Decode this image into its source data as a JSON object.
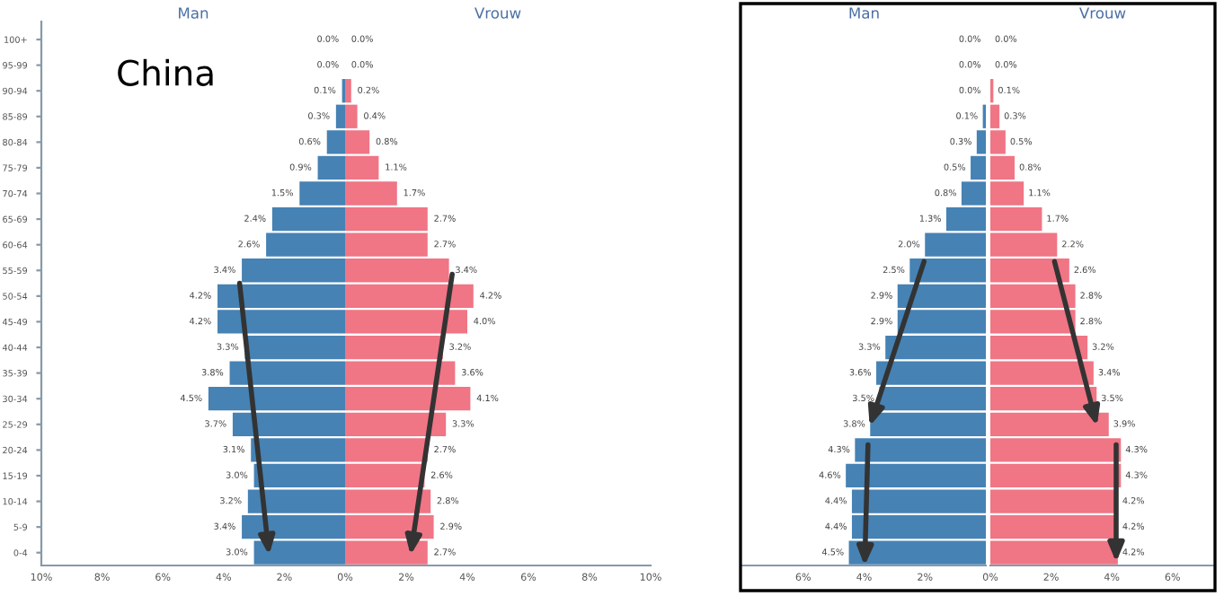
{
  "chart_data": [
    {
      "type": "bar",
      "orientation": "horizontal",
      "title": "Man",
      "annotations": [
        "China"
      ],
      "grid": false,
      "categories": [
        "100+",
        "95-99",
        "90-94",
        "85-89",
        "80-84",
        "75-79",
        "70-74",
        "65-69",
        "60-64",
        "55-59",
        "50-54",
        "45-49",
        "40-44",
        "35-39",
        "30-34",
        "25-29",
        "20-24",
        "15-19",
        "10-14",
        "5-9",
        "0-4"
      ],
      "series": [
        {
          "color": "#4682b4",
          "values": [
            0.0,
            0.0,
            0.1,
            0.3,
            0.6,
            0.9,
            1.5,
            2.4,
            2.6,
            3.4,
            4.2,
            4.2,
            3.3,
            3.8,
            4.5,
            3.7,
            3.1,
            3.0,
            3.2,
            3.4,
            3.0
          ],
          "value_labels": [
            "0.0%",
            "0.0%",
            "0.1%",
            "0.3%",
            "0.6%",
            "0.9%",
            "1.5%",
            "2.4%",
            "2.6%",
            "3.4%",
            "4.2%",
            "4.2%",
            "3.3%",
            "3.8%",
            "4.5%",
            "3.7%",
            "3.1%",
            "3.0%",
            "3.2%",
            "3.4%",
            "3.0%"
          ]
        }
      ],
      "xlim": [
        10,
        0
      ],
      "xticks": [
        {
          "value": 10,
          "label": "10%"
        },
        {
          "value": 8,
          "label": "8%"
        },
        {
          "value": 6,
          "label": "6%"
        },
        {
          "value": 4,
          "label": "4%"
        },
        {
          "value": 2,
          "label": "2%"
        }
      ]
    },
    {
      "type": "bar",
      "orientation": "horizontal",
      "title": "Vrouw",
      "grid": false,
      "tick_labels": "x",
      "categories": [
        null,
        null,
        null,
        null,
        null,
        null,
        null,
        null,
        null,
        null,
        null,
        null,
        null,
        null,
        null,
        null,
        null,
        null,
        null,
        null,
        null
      ],
      "series": [
        {
          "color": "#f07585",
          "values": [
            0.0,
            0.0,
            0.2,
            0.4,
            0.8,
            1.1,
            1.7,
            2.7,
            2.7,
            3.4,
            4.2,
            4.0,
            3.2,
            3.6,
            4.1,
            3.3,
            2.7,
            2.6,
            2.8,
            2.9,
            2.7
          ],
          "value_labels": [
            "0.0%",
            "0.0%",
            "0.2%",
            "0.4%",
            "0.8%",
            "1.1%",
            "1.7%",
            "2.7%",
            "2.7%",
            "3.4%",
            "4.2%",
            "4.0%",
            "3.2%",
            "3.6%",
            "4.1%",
            "3.3%",
            "2.7%",
            "2.6%",
            "2.8%",
            "2.9%",
            "2.7%"
          ]
        }
      ],
      "xlim": [
        0,
        10
      ],
      "xticks": [
        {
          "value": 0,
          "label": "0%"
        },
        {
          "value": 2,
          "label": "2%"
        },
        {
          "value": 4,
          "label": "4%"
        },
        {
          "value": 6,
          "label": "6%"
        },
        {
          "value": 8,
          "label": "8%"
        },
        {
          "value": 10,
          "label": "10%"
        }
      ]
    },
    {
      "type": "bar",
      "orientation": "horizontal",
      "title": "Man",
      "grid": false,
      "tick_labels": "x",
      "categories": [
        null,
        null,
        null,
        null,
        null,
        null,
        null,
        null,
        null,
        null,
        null,
        null,
        null,
        null,
        null,
        null,
        null,
        null,
        null,
        null,
        null
      ],
      "series": [
        {
          "color": "#4682b4",
          "values": [
            0.0,
            0.0,
            0.0,
            0.1,
            0.3,
            0.5,
            0.8,
            1.3,
            2.0,
            2.5,
            2.9,
            2.9,
            3.3,
            3.6,
            3.5,
            3.8,
            4.3,
            4.6,
            4.4,
            4.4,
            4.5
          ],
          "value_labels": [
            "0.0%",
            "0.0%",
            "0.0%",
            "0.1%",
            "0.3%",
            "0.5%",
            "0.8%",
            "1.3%",
            "2.0%",
            "2.5%",
            "2.9%",
            "2.9%",
            "3.3%",
            "3.6%",
            "3.5%",
            "3.8%",
            "4.3%",
            "4.6%",
            "4.4%",
            "4.4%",
            "4.5%"
          ]
        }
      ],
      "xlim": [
        8,
        0
      ],
      "xticks": [
        {
          "value": 6,
          "label": "6%"
        },
        {
          "value": 4,
          "label": "4%"
        },
        {
          "value": 2,
          "label": "2%"
        }
      ]
    },
    {
      "type": "bar",
      "orientation": "horizontal",
      "title": "Vrouw",
      "grid": false,
      "tick_labels": "x",
      "categories": [
        null,
        null,
        null,
        null,
        null,
        null,
        null,
        null,
        null,
        null,
        null,
        null,
        null,
        null,
        null,
        null,
        null,
        null,
        null,
        null,
        null
      ],
      "series": [
        {
          "color": "#f07585",
          "values": [
            0.0,
            0.0,
            0.1,
            0.3,
            0.5,
            0.8,
            1.1,
            1.7,
            2.2,
            2.6,
            2.8,
            2.8,
            3.2,
            3.4,
            3.5,
            3.9,
            4.3,
            4.3,
            4.2,
            4.2,
            4.2
          ],
          "value_labels": [
            "0.0%",
            "0.0%",
            "0.1%",
            "0.3%",
            "0.5%",
            "0.8%",
            "1.1%",
            "1.7%",
            "2.2%",
            "2.6%",
            "2.8%",
            "2.8%",
            "3.2%",
            "3.4%",
            "3.5%",
            "3.9%",
            "4.3%",
            "4.3%",
            "4.2%",
            "4.2%",
            "4.2%"
          ]
        }
      ],
      "xlim": [
        0,
        7.4
      ],
      "xticks": [
        {
          "value": 0,
          "label": "0%"
        },
        {
          "value": 2,
          "label": "2%"
        },
        {
          "value": 4,
          "label": "4%"
        },
        {
          "value": 6,
          "label": "6%"
        }
      ]
    }
  ]
}
